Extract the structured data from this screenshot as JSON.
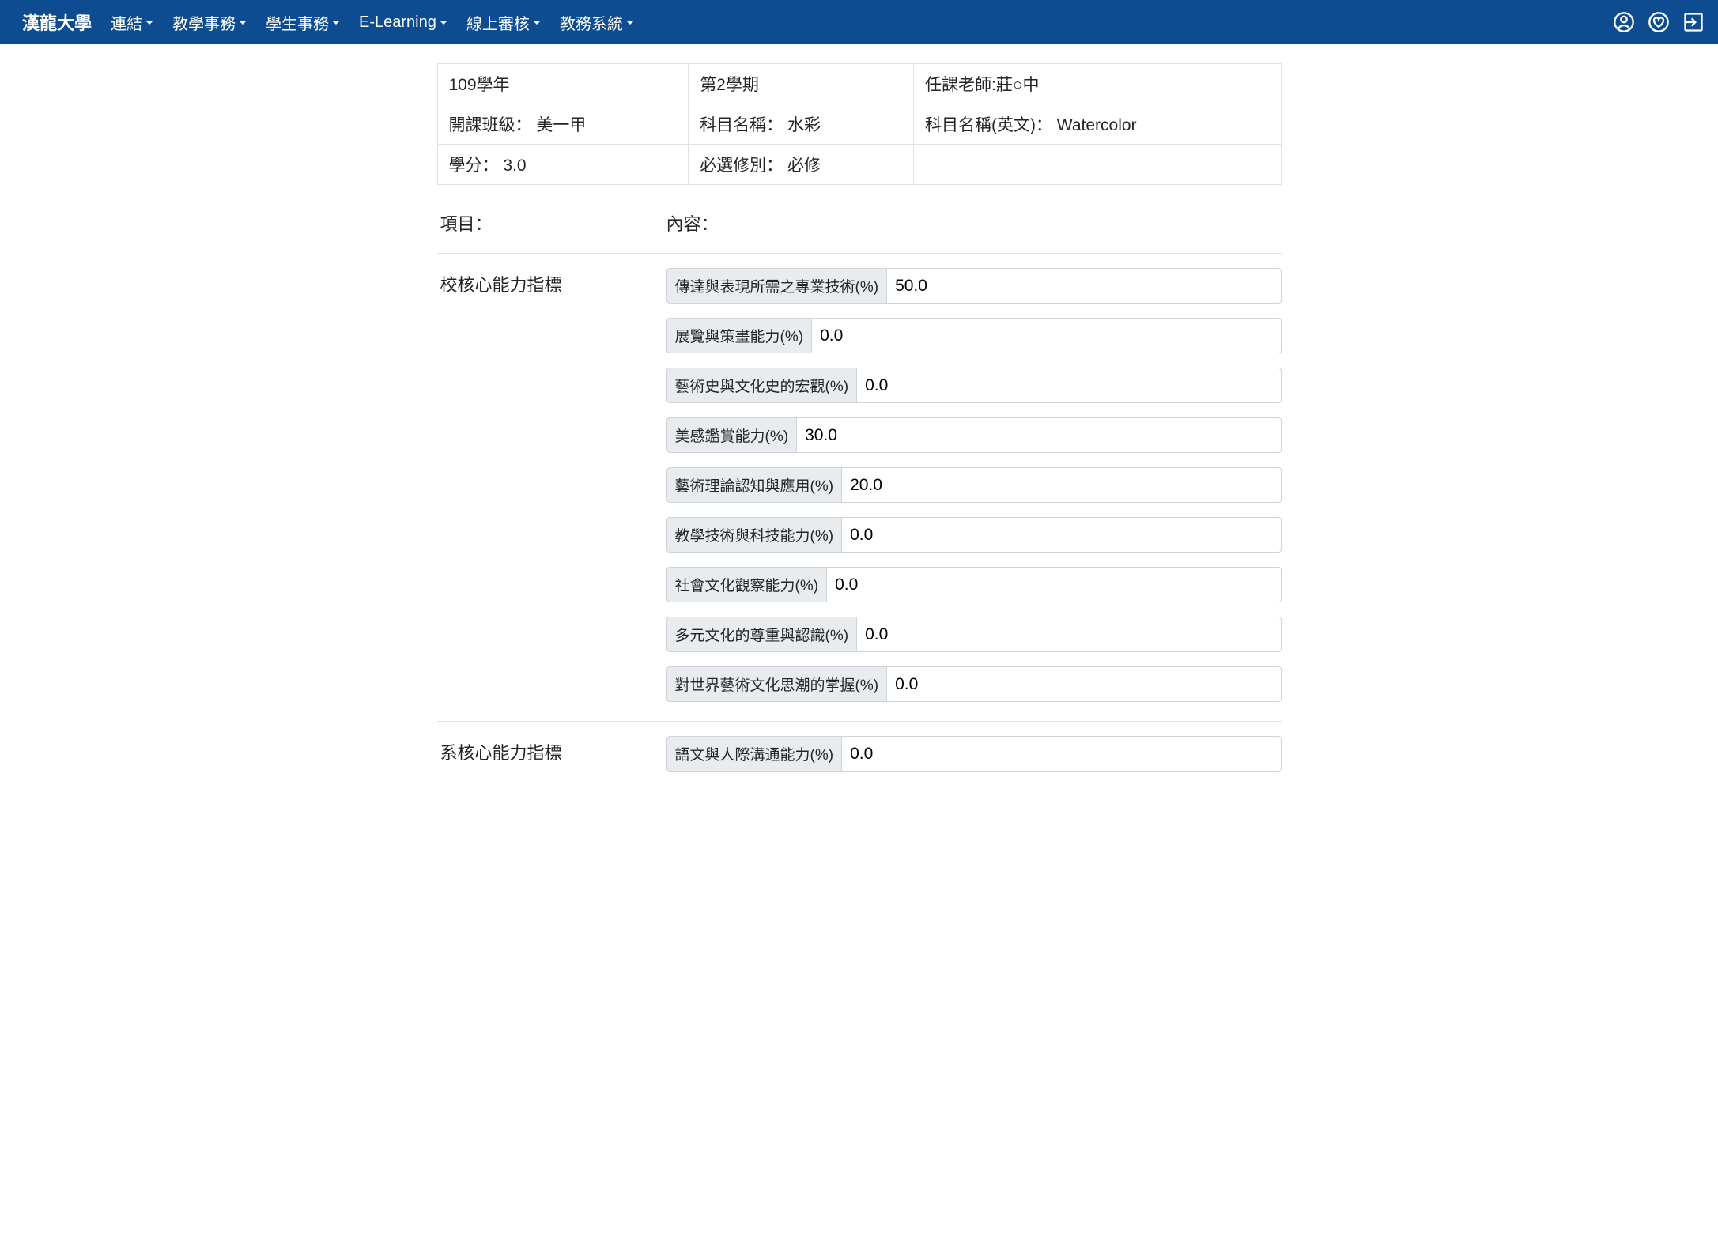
{
  "colors": {
    "navbar_bg": "#0e4c92",
    "navbar_fg": "#ffffff",
    "border": "#dee2e6",
    "input_group_bg": "#e9ecef",
    "input_border": "#ced4da",
    "text": "#212529"
  },
  "navbar": {
    "brand": "漢龍大學",
    "items": [
      {
        "label": "連結"
      },
      {
        "label": "教學事務"
      },
      {
        "label": "學生事務"
      },
      {
        "label": "E-Learning"
      },
      {
        "label": "線上審核"
      },
      {
        "label": "教務系統"
      }
    ]
  },
  "info": {
    "year": "109學年",
    "semester": "第2學期",
    "teacher": "任課老師:莊○中",
    "class_label": "開課班級： 美一甲",
    "subject_label": "科目名稱： 水彩",
    "subject_en_label": "科目名稱(英文)： Watercolor",
    "credits_label": "學分： 3.0",
    "required_label": "必選修別： 必修"
  },
  "headers": {
    "item": "項目：",
    "content": "內容："
  },
  "sections": [
    {
      "title": "校核心能力指標",
      "fields": [
        {
          "label": "傳達與表現所需之專業技術(%)",
          "value": "50.0"
        },
        {
          "label": "展覽與策畫能力(%)",
          "value": "0.0"
        },
        {
          "label": "藝術史與文化史的宏觀(%)",
          "value": "0.0"
        },
        {
          "label": "美感鑑賞能力(%)",
          "value": "30.0"
        },
        {
          "label": "藝術理論認知與應用(%)",
          "value": "20.0"
        },
        {
          "label": "教學技術與科技能力(%)",
          "value": "0.0"
        },
        {
          "label": "社會文化觀察能力(%)",
          "value": "0.0"
        },
        {
          "label": "多元文化的尊重與認識(%)",
          "value": "0.0"
        },
        {
          "label": "對世界藝術文化思潮的掌握(%)",
          "value": "0.0"
        }
      ]
    },
    {
      "title": "系核心能力指標",
      "fields": [
        {
          "label": "語文與人際溝通能力(%)",
          "value": "0.0"
        }
      ]
    }
  ]
}
